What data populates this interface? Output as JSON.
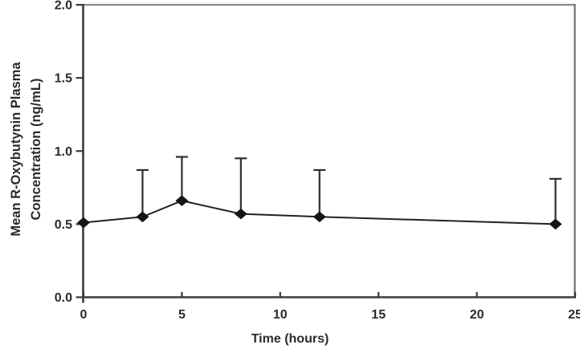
{
  "chart_data": {
    "type": "line",
    "title": "",
    "xlabel": "Time (hours)",
    "ylabel": "Mean R-Oxybutynin Plasma Concentration (ng/mL)",
    "ylabel_lines": [
      "Mean R-Oxybutynin Plasma",
      "Concentration (ng/mL)"
    ],
    "xlim": [
      0,
      25
    ],
    "ylim": [
      0.0,
      2.0
    ],
    "x_ticks": [
      "0",
      "5",
      "10",
      "15",
      "20",
      "25"
    ],
    "x_tick_values": [
      0,
      5,
      10,
      15,
      20,
      25
    ],
    "y_ticks": [
      "0.0",
      "0.5",
      "1.0",
      "1.5",
      "2.0"
    ],
    "y_tick_values": [
      0.0,
      0.5,
      1.0,
      1.5,
      2.0
    ],
    "grid": false,
    "legend_position": "none",
    "error_bars": "upper-only-capped",
    "series": [
      {
        "name": "Mean R-Oxybutynin plasma concentration",
        "marker": "diamond",
        "points": [
          {
            "x": 0,
            "y": 0.51,
            "err_upper": null
          },
          {
            "x": 3,
            "y": 0.55,
            "err_upper": 0.87
          },
          {
            "x": 5,
            "y": 0.66,
            "err_upper": 0.96
          },
          {
            "x": 8,
            "y": 0.57,
            "err_upper": 0.95
          },
          {
            "x": 12,
            "y": 0.55,
            "err_upper": 0.87
          },
          {
            "x": 24,
            "y": 0.5,
            "err_upper": 0.81
          }
        ]
      }
    ],
    "colors": {
      "line": "#222222",
      "marker": "#151515",
      "error_bar": "#2e2e2e",
      "axis": "#3a3a3a",
      "frame_top": "#8a8a8a",
      "frame_right": "#6e6e6e",
      "text": "#2b2b2b",
      "background": "#ffffff"
    }
  }
}
